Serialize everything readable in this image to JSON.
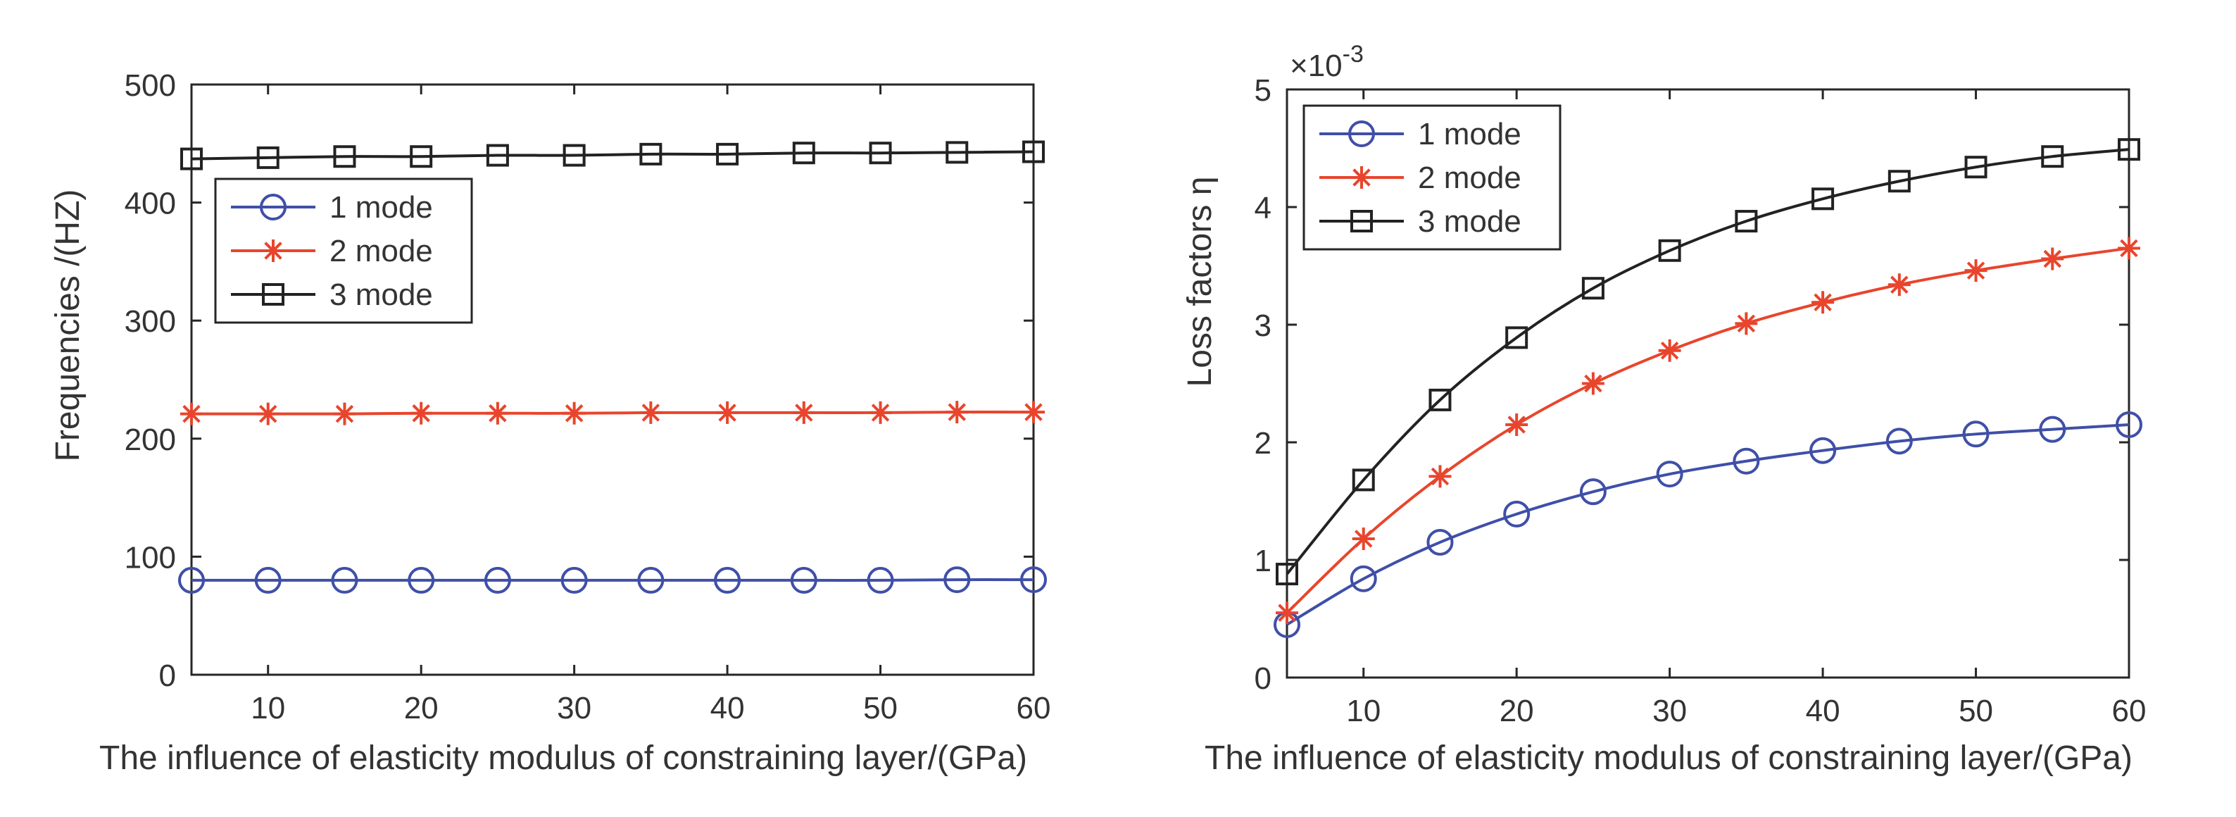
{
  "chart_data": [
    {
      "type": "line",
      "title": "",
      "xlabel": "The influence of elasticity modulus of constraining layer/(GPa)",
      "ylabel": "Frequencies /(HZ)",
      "x": [
        5,
        10,
        15,
        20,
        25,
        30,
        35,
        40,
        45,
        50,
        55,
        60
      ],
      "xlim": [
        5,
        60
      ],
      "ylim": [
        0,
        500
      ],
      "xticks": [
        "10",
        "20",
        "30",
        "40",
        "50",
        "60"
      ],
      "yticks": [
        "0",
        "100",
        "200",
        "300",
        "400",
        "500"
      ],
      "grid": false,
      "legend_position": "upper-left",
      "series": [
        {
          "name": "1 mode",
          "marker": "circle",
          "color": "#3F4FA8",
          "values": [
            80,
            80,
            80,
            80,
            80,
            80,
            80,
            80,
            80,
            80,
            80.5,
            80.5
          ]
        },
        {
          "name": "2 mode",
          "marker": "asterisk",
          "color": "#E8452C",
          "values": [
            221,
            221,
            221,
            221.5,
            221.5,
            221.5,
            222,
            222,
            222,
            222,
            222.5,
            222.5
          ]
        },
        {
          "name": "3 mode",
          "marker": "square",
          "color": "#222222",
          "values": [
            437,
            438,
            439,
            439,
            440,
            440,
            441,
            441,
            442,
            442,
            442.5,
            443
          ]
        }
      ]
    },
    {
      "type": "line",
      "title": "",
      "xlabel": "The influence of elasticity modulus of constraining layer/(GPa)",
      "ylabel": "Loss factors  η",
      "y_exponent_base": "×10",
      "y_exponent_power": "-3",
      "x": [
        5,
        10,
        15,
        20,
        25,
        30,
        35,
        40,
        45,
        50,
        55,
        60
      ],
      "xlim": [
        5,
        60
      ],
      "ylim": [
        0,
        5
      ],
      "xticks": [
        "10",
        "20",
        "30",
        "40",
        "50",
        "60"
      ],
      "yticks": [
        "0",
        "1",
        "2",
        "3",
        "4",
        "5"
      ],
      "grid": false,
      "legend_position": "upper-left",
      "series": [
        {
          "name": "1 mode",
          "marker": "circle",
          "color": "#3F4FA8",
          "values": [
            0.45,
            0.84,
            1.15,
            1.39,
            1.58,
            1.73,
            1.84,
            1.93,
            2.01,
            2.07,
            2.11,
            2.15
          ]
        },
        {
          "name": "2 mode",
          "marker": "asterisk",
          "color": "#E8452C",
          "values": [
            0.55,
            1.18,
            1.71,
            2.15,
            2.5,
            2.78,
            3.01,
            3.19,
            3.34,
            3.46,
            3.56,
            3.65
          ]
        },
        {
          "name": "3 mode",
          "marker": "square",
          "color": "#222222",
          "values": [
            0.88,
            1.68,
            2.36,
            2.89,
            3.31,
            3.63,
            3.88,
            4.07,
            4.22,
            4.34,
            4.43,
            4.49
          ]
        }
      ]
    }
  ]
}
